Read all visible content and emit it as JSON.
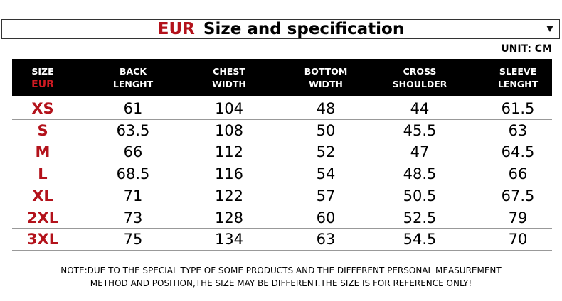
{
  "header": {
    "region": "EUR",
    "title": "Size and specification",
    "unit": "UNIT: CM"
  },
  "table": {
    "columns": [
      [
        "SIZE",
        "EUR"
      ],
      [
        "BACK",
        "LENGHT"
      ],
      [
        "CHEST",
        "WIDTH"
      ],
      [
        "BOTTOM",
        "WIDTH"
      ],
      [
        "CROSS",
        "SHOULDER"
      ],
      [
        "SLEEVE",
        "LENGHT"
      ]
    ],
    "rows": [
      [
        "XS",
        61,
        104,
        48,
        44,
        61.5
      ],
      [
        "S",
        63.5,
        108,
        50,
        45.5,
        63
      ],
      [
        "M",
        66,
        112,
        52,
        47,
        64.5
      ],
      [
        "L",
        68.5,
        116,
        54,
        48.5,
        66
      ],
      [
        "XL",
        71,
        122,
        57,
        50.5,
        67.5
      ],
      [
        "2XL",
        73,
        128,
        60,
        52.5,
        79
      ],
      [
        "3XL",
        75,
        134,
        63,
        54.5,
        70
      ]
    ]
  },
  "note": [
    "NOTE:DUE TO THE SPECIAL TYPE OF SOME PRODUCTS AND THE DIFFERENT PERSONAL MEASUREMENT",
    "METHOD AND POSITION,THE SIZE MAY BE DIFFERENT.THE SIZE IS FOR REFERENCE ONLY!"
  ]
}
